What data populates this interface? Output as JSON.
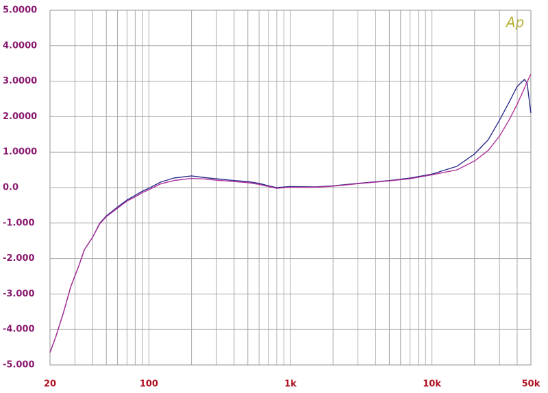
{
  "chart_data": {
    "type": "line",
    "logo": "Ap",
    "x": [
      20,
      22,
      25,
      28,
      32,
      35,
      40,
      45,
      50,
      60,
      70,
      80,
      90,
      100,
      120,
      150,
      200,
      250,
      300,
      400,
      500,
      600,
      700,
      800,
      1000,
      1500,
      2000,
      3000,
      5000,
      7000,
      10000,
      15000,
      20000,
      25000,
      30000,
      35000,
      40000,
      45000,
      47000,
      50000
    ],
    "series": [
      {
        "color": "#2a2a8a",
        "values": [
          -4.65,
          -4.2,
          -3.5,
          -2.8,
          -2.2,
          -1.75,
          -1.4,
          -1.0,
          -0.8,
          -0.55,
          -0.35,
          -0.22,
          -0.1,
          -0.02,
          0.15,
          0.27,
          0.33,
          0.28,
          0.25,
          0.2,
          0.17,
          0.12,
          0.05,
          0.0,
          0.03,
          0.02,
          0.05,
          0.12,
          0.2,
          0.27,
          0.38,
          0.6,
          0.95,
          1.35,
          1.9,
          2.4,
          2.85,
          3.05,
          2.95,
          2.1
        ]
      },
      {
        "color": "#b0309a",
        "values": [
          -4.65,
          -4.2,
          -3.5,
          -2.8,
          -2.2,
          -1.75,
          -1.4,
          -1.02,
          -0.82,
          -0.58,
          -0.38,
          -0.26,
          -0.14,
          -0.06,
          0.1,
          0.2,
          0.26,
          0.24,
          0.21,
          0.17,
          0.14,
          0.09,
          0.03,
          -0.02,
          0.01,
          0.01,
          0.04,
          0.11,
          0.19,
          0.25,
          0.36,
          0.5,
          0.75,
          1.05,
          1.45,
          1.9,
          2.35,
          2.8,
          2.98,
          3.2
        ]
      }
    ],
    "xlim": [
      20,
      50000
    ],
    "xlog": true,
    "xticks": [
      20,
      100,
      {
        "value": 1000,
        "label": "1k"
      },
      {
        "value": 10000,
        "label": "10k"
      },
      {
        "value": 50000,
        "label": "50k"
      }
    ],
    "xminor": [
      30,
      40,
      50,
      60,
      70,
      80,
      90,
      200,
      300,
      400,
      500,
      600,
      700,
      800,
      900,
      2000,
      3000,
      4000,
      5000,
      6000,
      7000,
      8000,
      9000,
      20000,
      30000,
      40000
    ],
    "ylim": [
      -5,
      5
    ],
    "yticks": [
      {
        "value": 5,
        "label": "5.0000"
      },
      {
        "value": 4,
        "label": "4.0000"
      },
      {
        "value": 3,
        "label": "3.0000"
      },
      {
        "value": 2,
        "label": "2.0000"
      },
      {
        "value": 1,
        "label": "1.0000"
      },
      {
        "value": 0,
        "label": "0.0"
      },
      {
        "value": -1,
        "label": "-1.000"
      },
      {
        "value": -2,
        "label": "-2.000"
      },
      {
        "value": -3,
        "label": "-3.000"
      },
      {
        "value": -4,
        "label": "-4.000"
      },
      {
        "value": -5,
        "label": "-5.000"
      }
    ],
    "grid": true
  }
}
